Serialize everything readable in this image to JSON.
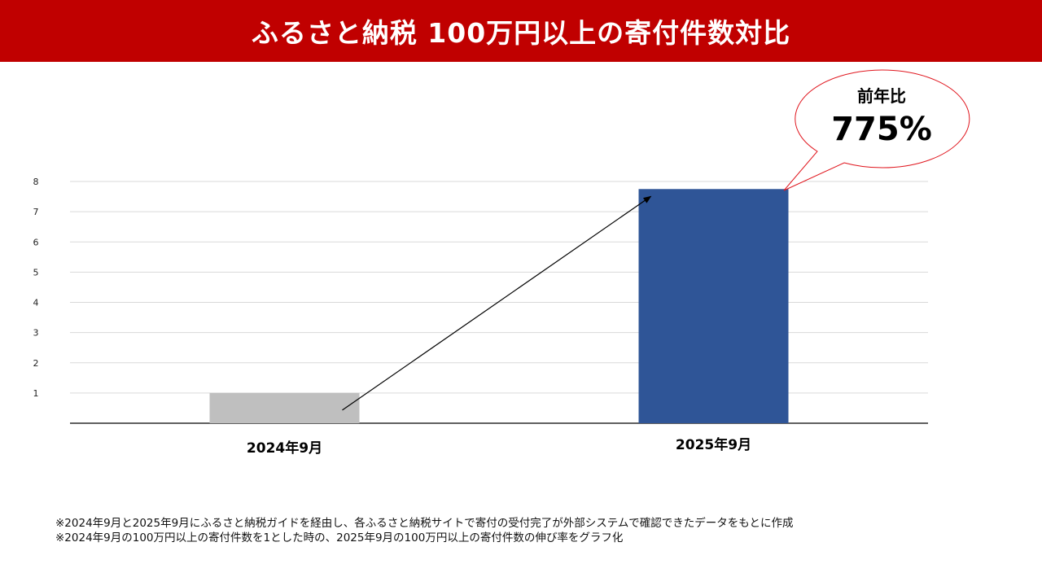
{
  "page": {
    "title": "ふるさと納税 100万円以上の寄付件数対比",
    "title_bg": "#c00000",
    "title_color": "#ffffff"
  },
  "callout": {
    "label": "前年比",
    "value": "775%",
    "border_color": "#e0161e"
  },
  "chart_data": {
    "type": "bar",
    "title": "",
    "xlabel": "",
    "ylabel": "",
    "categories": [
      "2024年9月",
      "2025年9月"
    ],
    "values": [
      1,
      7.75
    ],
    "colors": [
      "#bfbfbf",
      "#2f5597"
    ],
    "ylim": [
      0,
      8
    ],
    "yticks": [
      "1",
      "2",
      "3",
      "4",
      "5",
      "6",
      "7",
      "8"
    ],
    "grid": true,
    "annotations": [
      "growth-arrow"
    ]
  },
  "notes": [
    "※2024年9月と2025年9月にふるさと納税ガイドを経由し、各ふるさと納税サイトで寄付の受付完了が外部システムで確認できたデータをもとに作成",
    "※2024年9月の100万円以上の寄付件数を1とした時の、2025年9月の100万円以上の寄付件数の伸び率をグラフ化"
  ]
}
